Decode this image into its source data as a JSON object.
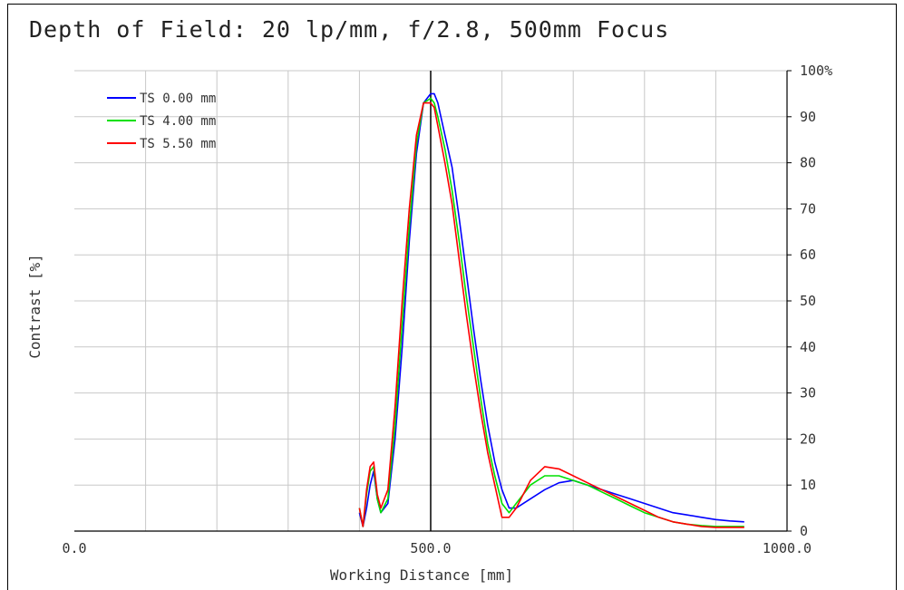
{
  "chart_data": {
    "type": "line",
    "title": "Depth of Field: 20 lp/mm, f/2.8, 500mm Focus",
    "xlabel": "Working Distance [mm]",
    "ylabel": "Contrast [%]",
    "xlim": [
      0,
      1000
    ],
    "ylim": [
      0,
      100
    ],
    "x_ticks": [
      0,
      500,
      1000
    ],
    "x_tick_labels": [
      "0.0",
      "500.0",
      "1000.0"
    ],
    "x_grid": [
      100,
      200,
      300,
      400,
      500,
      600,
      700,
      800,
      900,
      1000
    ],
    "y_ticks": [
      0,
      10,
      20,
      30,
      40,
      50,
      60,
      70,
      80,
      90,
      100
    ],
    "y_tick_labels": [
      "0",
      "10",
      "20",
      "30",
      "40",
      "50",
      "60",
      "70",
      "80",
      "90",
      "100%"
    ],
    "y_axis_side": "right",
    "grid": true,
    "focus_line_x": 500,
    "legend_position": "top-left",
    "series": [
      {
        "name": "TS 0.00 mm",
        "color": "#0000ff",
        "x": [
          400,
          405,
          410,
          415,
          420,
          425,
          430,
          440,
          450,
          460,
          470,
          480,
          490,
          500,
          505,
          510,
          520,
          530,
          540,
          550,
          560,
          570,
          580,
          590,
          600,
          610,
          620,
          640,
          660,
          680,
          700,
          720,
          740,
          760,
          780,
          800,
          820,
          840,
          860,
          880,
          900,
          920,
          940
        ],
        "y": [
          4,
          1,
          5,
          10,
          13,
          7,
          4,
          6,
          20,
          40,
          63,
          82,
          93,
          95,
          95,
          93,
          86,
          79,
          68,
          56,
          44,
          33,
          23,
          15,
          9,
          5,
          5,
          7,
          9,
          10.5,
          11,
          10,
          9,
          8,
          7,
          6,
          5,
          4,
          3.5,
          3,
          2.5,
          2.2,
          2
        ]
      },
      {
        "name": "TS 4.00 mm",
        "color": "#00e000",
        "x": [
          400,
          405,
          410,
          415,
          420,
          425,
          430,
          440,
          450,
          460,
          470,
          480,
          490,
          500,
          505,
          510,
          520,
          530,
          540,
          550,
          560,
          570,
          580,
          590,
          600,
          610,
          620,
          640,
          660,
          680,
          700,
          720,
          740,
          760,
          780,
          800,
          820,
          840,
          860,
          880,
          900,
          920,
          940
        ],
        "y": [
          5,
          1,
          8,
          13,
          14,
          7,
          4,
          7,
          23,
          45,
          66,
          84,
          93,
          94,
          93,
          90,
          83,
          74,
          63,
          51,
          40,
          29,
          19,
          12,
          6,
          4,
          6,
          10,
          12,
          12,
          11,
          10,
          8.5,
          7,
          5.5,
          4,
          3,
          2,
          1.5,
          1.2,
          1,
          1,
          1
        ]
      },
      {
        "name": "TS 5.50 mm",
        "color": "#ff0000",
        "x": [
          400,
          405,
          410,
          415,
          420,
          425,
          430,
          440,
          450,
          460,
          470,
          480,
          490,
          500,
          505,
          510,
          520,
          530,
          540,
          550,
          560,
          570,
          580,
          590,
          600,
          610,
          620,
          640,
          660,
          680,
          700,
          720,
          740,
          760,
          780,
          800,
          820,
          840,
          860,
          880,
          900,
          920,
          940
        ],
        "y": [
          5,
          1,
          9,
          14,
          15,
          8,
          5,
          9,
          27,
          50,
          70,
          86,
          93,
          93,
          92,
          88,
          80,
          71,
          59,
          47,
          36,
          26,
          17,
          10,
          3,
          3,
          5,
          11,
          14,
          13.5,
          12,
          10.5,
          9,
          7.5,
          6,
          4.5,
          3,
          2,
          1.5,
          1,
          0.8,
          0.8,
          0.8
        ]
      }
    ]
  }
}
